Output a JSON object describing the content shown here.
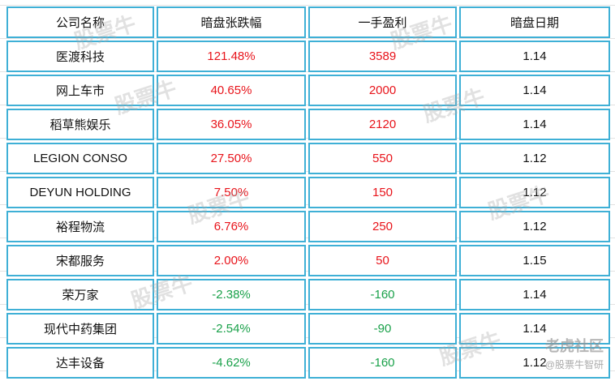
{
  "table": {
    "headers": [
      "公司名称",
      "暗盘张跌幅",
      "一手盈利",
      "暗盘日期"
    ],
    "rows": [
      {
        "name": "医渡科技",
        "change": "121.48%",
        "profit": "3589",
        "date": "1.14",
        "trend": "up"
      },
      {
        "name": "网上车市",
        "change": "40.65%",
        "profit": "2000",
        "date": "1.14",
        "trend": "up"
      },
      {
        "name": "稻草熊娱乐",
        "change": "36.05%",
        "profit": "2120",
        "date": "1.14",
        "trend": "up"
      },
      {
        "name": "LEGION CONSO",
        "change": "27.50%",
        "profit": "550",
        "date": "1.12",
        "trend": "up"
      },
      {
        "name": "DEYUN HOLDING",
        "change": "7.50%",
        "profit": "150",
        "date": "1.12",
        "trend": "up"
      },
      {
        "name": "裕程物流",
        "change": "6.76%",
        "profit": "250",
        "date": "1.12",
        "trend": "up"
      },
      {
        "name": "宋都服务",
        "change": "2.00%",
        "profit": "50",
        "date": "1.15",
        "trend": "up"
      },
      {
        "name": "荣万家",
        "change": "-2.38%",
        "profit": "-160",
        "date": "1.14",
        "trend": "down"
      },
      {
        "name": "现代中药集团",
        "change": "-2.54%",
        "profit": "-90",
        "date": "1.14",
        "trend": "down"
      },
      {
        "name": "达丰设备",
        "change": "-4.62%",
        "profit": "-160",
        "date": "1.12",
        "trend": "down"
      }
    ]
  },
  "colors": {
    "up": "#e8141b",
    "down": "#1aa14a",
    "border": "#3fb0d6"
  },
  "watermark": {
    "text": "股票牛",
    "brand": "老虎社区",
    "credit": "@股票牛智研"
  }
}
